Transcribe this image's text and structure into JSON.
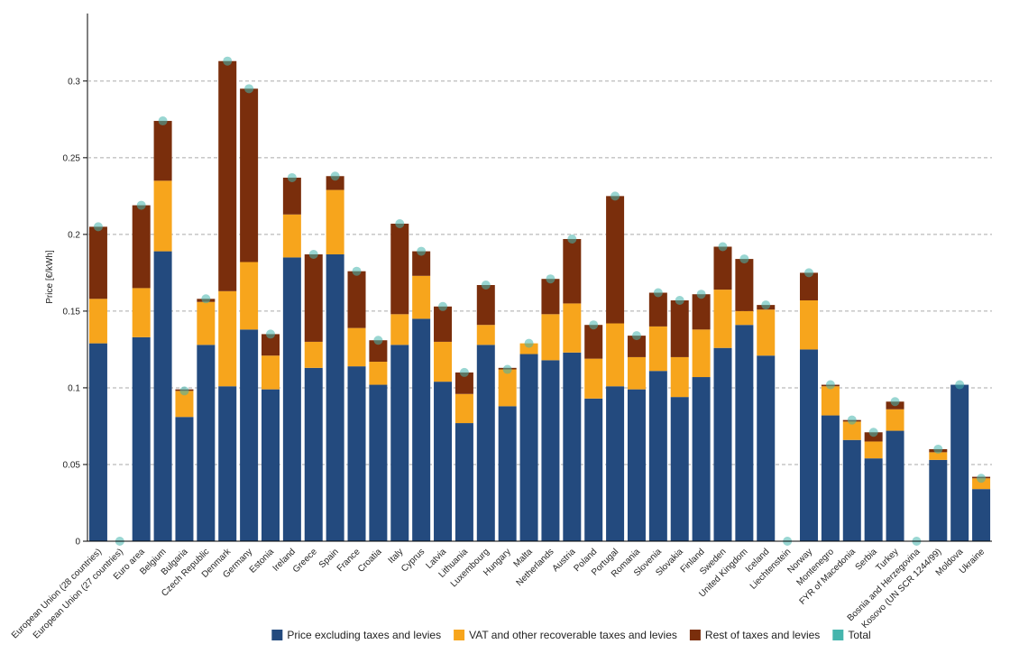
{
  "chart_data": {
    "type": "stacked-bar",
    "y_label": "Price [€/kWh]",
    "categories": [
      "European Union (28 countries)",
      "European Union (27 countries)",
      "Euro area",
      "Belgium",
      "Bulgaria",
      "Czech Republic",
      "Denmark",
      "Germany",
      "Estonia",
      "Ireland",
      "Greece",
      "Spain",
      "France",
      "Croatia",
      "Italy",
      "Cyprus",
      "Latvia",
      "Lithuania",
      "Luxembourg",
      "Hungary",
      "Malta",
      "Netherlands",
      "Austria",
      "Poland",
      "Portugal",
      "Romania",
      "Slovenia",
      "Slovakia",
      "Finland",
      "Sweden",
      "United Kingdom",
      "Iceland",
      "Liechtenstein",
      "Norway",
      "Montenegro",
      "FYR of Macedonia",
      "Serbia",
      "Turkey",
      "Bosnia and Herzegovina",
      "Kosovo (UN SCR 1244/99)",
      "Moldova",
      "Ukraine"
    ],
    "series": [
      {
        "name": "Price excluding taxes and levies",
        "color": "#234a7e",
        "values": [
          0.129,
          null,
          0.133,
          0.189,
          0.081,
          0.128,
          0.101,
          0.138,
          0.099,
          0.185,
          0.113,
          0.187,
          0.114,
          0.102,
          0.128,
          0.145,
          0.104,
          0.077,
          0.128,
          0.088,
          0.122,
          0.118,
          0.123,
          0.093,
          0.101,
          0.099,
          0.111,
          0.094,
          0.107,
          0.126,
          0.141,
          0.121,
          null,
          0.125,
          0.082,
          0.066,
          0.054,
          0.072,
          null,
          0.053,
          0.102,
          0.034
        ]
      },
      {
        "name": "VAT and other recoverable taxes and levies",
        "color": "#f7a51c",
        "values": [
          0.029,
          null,
          0.032,
          0.046,
          0.017,
          0.028,
          0.062,
          0.044,
          0.022,
          0.028,
          0.017,
          0.042,
          0.025,
          0.015,
          0.02,
          0.028,
          0.026,
          0.019,
          0.013,
          0.024,
          0.007,
          0.03,
          0.032,
          0.026,
          0.041,
          0.021,
          0.029,
          0.026,
          0.031,
          0.038,
          0.009,
          0.03,
          null,
          0.032,
          0.019,
          0.012,
          0.011,
          0.014,
          null,
          0.005,
          0,
          0.007
        ]
      },
      {
        "name": "Rest of taxes and levies",
        "color": "#7a2e0c",
        "values": [
          0.047,
          null,
          0.054,
          0.039,
          0.001,
          0.002,
          0.15,
          0.113,
          0.014,
          0.024,
          0.057,
          0.009,
          0.037,
          0.014,
          0.059,
          0.016,
          0.023,
          0.014,
          0.026,
          0.001,
          0,
          0.023,
          0.042,
          0.022,
          0.083,
          0.014,
          0.022,
          0.037,
          0.023,
          0.028,
          0.034,
          0.003,
          null,
          0.018,
          0.001,
          0.001,
          0.006,
          0.005,
          null,
          0.002,
          0,
          0.001
        ]
      }
    ],
    "total": {
      "name": "Total",
      "color": "#45b5ad",
      "values": [
        0.205,
        0,
        0.219,
        0.274,
        0.098,
        0.158,
        0.313,
        0.295,
        0.135,
        0.237,
        0.187,
        0.238,
        0.176,
        0.131,
        0.207,
        0.189,
        0.153,
        0.11,
        0.167,
        0.112,
        0.129,
        0.171,
        0.197,
        0.141,
        0.225,
        0.134,
        0.162,
        0.157,
        0.161,
        0.192,
        0.184,
        0.154,
        0,
        0.175,
        0.102,
        0.079,
        0.071,
        0.091,
        0,
        0.06,
        0.102,
        0.041
      ]
    },
    "ylim": [
      0,
      0.344
    ],
    "yticks": [
      0,
      0.05,
      0.1,
      0.15,
      0.2,
      0.25,
      0.3
    ],
    "grid": true
  }
}
